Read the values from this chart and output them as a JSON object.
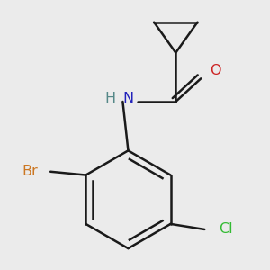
{
  "background_color": "#ebebeb",
  "bond_color": "#1a1a1a",
  "bond_width": 1.8,
  "atom_labels": {
    "N": {
      "text": "N",
      "color": "#2222bb",
      "fontsize": 11
    },
    "H": {
      "text": "H",
      "color": "#558888",
      "fontsize": 11
    },
    "O": {
      "text": "O",
      "color": "#cc2222",
      "fontsize": 11
    },
    "Br": {
      "text": "Br",
      "color": "#cc7722",
      "fontsize": 11
    },
    "Cl": {
      "text": "Cl",
      "color": "#33bb33",
      "fontsize": 11
    }
  },
  "figsize": [
    3.0,
    3.0
  ],
  "dpi": 100
}
